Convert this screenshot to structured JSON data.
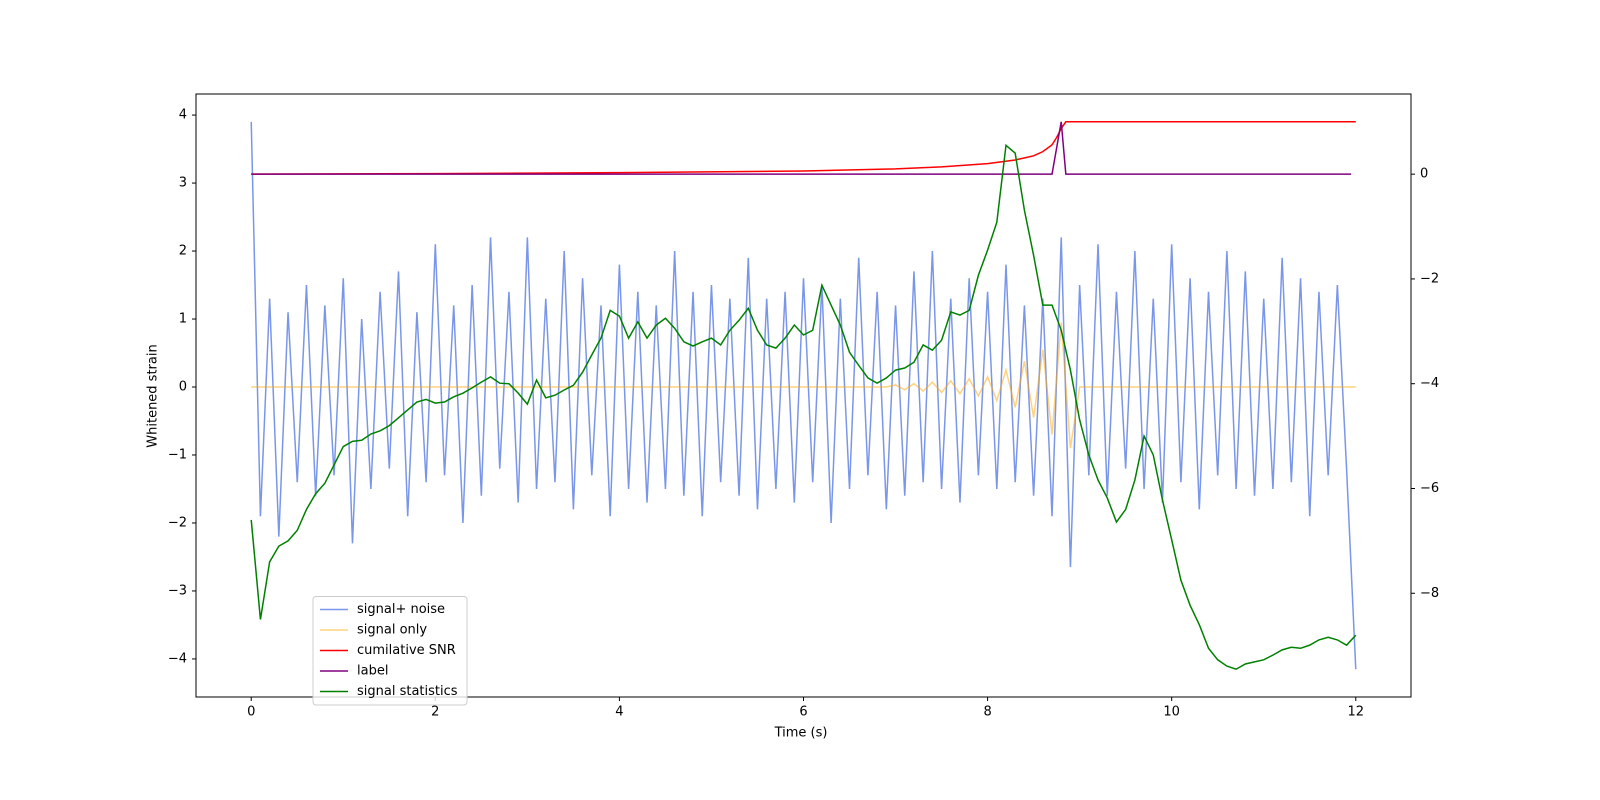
{
  "chart_data": {
    "type": "line",
    "xlabel": "Time (s)",
    "ylabel": "Whitened strain",
    "xlim": [
      -0.6,
      12.6
    ],
    "ylim": [
      -4.56,
      4.31
    ],
    "y2lim": [
      -9.98,
      1.53
    ],
    "xticks": [
      0,
      2,
      4,
      6,
      8,
      10,
      12
    ],
    "yticks": [
      {
        "value": -4,
        "label": "−4"
      },
      {
        "value": -3,
        "label": "−3"
      },
      {
        "value": -2,
        "label": "−2"
      },
      {
        "value": -1,
        "label": "−1"
      },
      0,
      1,
      2,
      3,
      4
    ],
    "y2ticks": [
      {
        "value": -8,
        "label": "−8"
      },
      {
        "value": -6,
        "label": "−6"
      },
      {
        "value": -4,
        "label": "−4"
      },
      {
        "value": -2,
        "label": "−2"
      },
      0
    ],
    "legend": "lower left",
    "x": [
      0,
      0.1,
      0.2,
      0.3,
      0.4,
      0.5,
      0.6,
      0.7,
      0.8,
      0.9,
      1,
      1.1,
      1.2,
      1.3,
      1.4,
      1.5,
      1.6,
      1.7,
      1.8,
      1.9,
      2,
      2.1,
      2.2,
      2.3,
      2.4,
      2.5,
      2.6,
      2.7,
      2.8,
      2.9,
      3,
      3.1,
      3.2,
      3.3,
      3.4,
      3.5,
      3.6,
      3.7,
      3.8,
      3.9,
      4,
      4.1,
      4.2,
      4.3,
      4.4,
      4.5,
      4.6,
      4.7,
      4.8,
      4.9,
      5,
      5.1,
      5.2,
      5.3,
      5.4,
      5.5,
      5.6,
      5.7,
      5.8,
      5.9,
      6,
      6.1,
      6.2,
      6.3,
      6.4,
      6.5,
      6.6,
      6.7,
      6.8,
      6.9,
      7,
      7.1,
      7.2,
      7.3,
      7.4,
      7.5,
      7.6,
      7.7,
      7.8,
      7.9,
      8,
      8.1,
      8.2,
      8.3,
      8.4,
      8.5,
      8.6,
      8.7,
      8.8,
      8.9,
      9,
      9.1,
      9.2,
      9.3,
      9.4,
      9.5,
      9.6,
      9.7,
      9.8,
      9.9,
      10,
      10.1,
      10.2,
      10.3,
      10.4,
      10.5,
      10.6,
      10.7,
      10.8,
      10.9,
      11,
      11.1,
      11.2,
      11.3,
      11.4,
      11.5,
      11.6,
      11.7,
      11.8,
      11.9,
      12
    ],
    "series": [
      {
        "name": "signal+ noise",
        "color": "#4169e1",
        "alpha": 0.7,
        "values": [
          3.9,
          -1.9,
          1.3,
          -2.2,
          1.1,
          -1.4,
          1.5,
          -1.6,
          1.2,
          -1.3,
          1.6,
          -2.3,
          1.0,
          -1.5,
          1.4,
          -1.2,
          1.7,
          -1.9,
          1.1,
          -1.4,
          2.1,
          -1.3,
          1.2,
          -2.0,
          1.5,
          -1.6,
          2.2,
          -1.2,
          1.4,
          -1.7,
          2.2,
          -1.5,
          1.3,
          -1.4,
          2.0,
          -1.8,
          1.6,
          -1.3,
          1.2,
          -1.9,
          1.8,
          -1.5,
          1.4,
          -1.7,
          1.2,
          -1.5,
          2.0,
          -1.6,
          1.4,
          -1.9,
          1.5,
          -1.4,
          1.3,
          -1.6,
          1.9,
          -1.8,
          1.3,
          -1.5,
          1.4,
          -1.7,
          1.6,
          -1.4,
          1.5,
          -2.0,
          1.3,
          -1.5,
          1.9,
          -1.3,
          1.4,
          -1.8,
          1.2,
          -1.6,
          1.7,
          -1.4,
          2.0,
          -1.5,
          1.3,
          -1.7,
          1.6,
          -1.3,
          1.4,
          -1.5,
          1.8,
          -1.4,
          1.2,
          -1.6,
          1.3,
          -1.9,
          2.2,
          -2.65,
          1.5,
          -1.3,
          2.1,
          -1.6,
          1.4,
          -1.2,
          2.0,
          -1.5,
          1.3,
          -1.7,
          2.1,
          -1.4,
          1.6,
          -1.8,
          1.4,
          -1.3,
          2.0,
          -1.5,
          1.7,
          -1.6,
          1.3,
          -1.5,
          1.9,
          -1.4,
          1.6,
          -1.9,
          1.4,
          -1.3,
          1.5,
          -1.2,
          -4.15
        ]
      },
      {
        "name": "signal only",
        "color": "#ffa500",
        "alpha": 0.5,
        "values": [
          0,
          0,
          0,
          0,
          0,
          0,
          0,
          0,
          0,
          0,
          0,
          0,
          0,
          0,
          0,
          0,
          0,
          0,
          0,
          0,
          0,
          0,
          0,
          0,
          0,
          0,
          0,
          0,
          0,
          0,
          0,
          0,
          0,
          0,
          0,
          0,
          0,
          0,
          0,
          0,
          0,
          0,
          0,
          0,
          0,
          0,
          0,
          0,
          0,
          0,
          0,
          0,
          0,
          0,
          0,
          0,
          0,
          0,
          0,
          0,
          0,
          0,
          0,
          0,
          0,
          0,
          0,
          0,
          0,
          0,
          0.03,
          -0.04,
          0.05,
          -0.06,
          0.07,
          -0.08,
          0.09,
          -0.1,
          0.12,
          -0.13,
          0.15,
          -0.2,
          0.25,
          -0.3,
          0.38,
          -0.45,
          0.55,
          -0.7,
          0.95,
          -0.9,
          0,
          0,
          0,
          0,
          0,
          0,
          0,
          0,
          0,
          0,
          0,
          0,
          0,
          0,
          0,
          0,
          0,
          0,
          0,
          0,
          0,
          0,
          0,
          0,
          0,
          0,
          0,
          0,
          0,
          0,
          0
        ]
      },
      {
        "name": "cumilative SNR",
        "color": "#ff0000",
        "axis": "y2",
        "x": [
          0,
          2,
          4,
          6,
          7,
          7.5,
          8,
          8.3,
          8.5,
          8.6,
          8.7,
          8.75,
          8.8,
          8.85,
          12
        ],
        "values": [
          0,
          0.01,
          0.03,
          0.06,
          0.1,
          0.14,
          0.2,
          0.27,
          0.35,
          0.43,
          0.56,
          0.7,
          0.87,
          1.0,
          1.0
        ]
      },
      {
        "name": "label",
        "color": "#800080",
        "axis": "y2",
        "x": [
          0,
          8.7,
          8.8,
          8.85,
          11.95
        ],
        "values": [
          0,
          0,
          1,
          0,
          0
        ]
      },
      {
        "name": "signal statistics",
        "color": "#008000",
        "axis": "y2",
        "values": [
          -6.6,
          -8.5,
          -7.4,
          -7.1,
          -7.0,
          -6.8,
          -6.4,
          -6.1,
          -5.9,
          -5.55,
          -5.2,
          -5.1,
          -5.08,
          -4.96,
          -4.9,
          -4.8,
          -4.65,
          -4.5,
          -4.35,
          -4.3,
          -4.37,
          -4.35,
          -4.25,
          -4.18,
          -4.08,
          -3.97,
          -3.87,
          -3.99,
          -4.0,
          -4.18,
          -4.39,
          -3.93,
          -4.27,
          -4.22,
          -4.12,
          -4.03,
          -3.78,
          -3.45,
          -3.13,
          -2.6,
          -2.71,
          -3.13,
          -2.82,
          -3.13,
          -2.88,
          -2.75,
          -2.94,
          -3.2,
          -3.28,
          -3.2,
          -3.13,
          -3.26,
          -2.98,
          -2.79,
          -2.56,
          -2.98,
          -3.26,
          -3.32,
          -3.13,
          -2.88,
          -3.07,
          -2.98,
          -2.12,
          -2.5,
          -2.88,
          -3.4,
          -3.65,
          -3.89,
          -3.99,
          -3.89,
          -3.74,
          -3.7,
          -3.59,
          -3.26,
          -3.36,
          -3.17,
          -2.63,
          -2.69,
          -2.6,
          -1.93,
          -1.45,
          -0.92,
          0.55,
          0.4,
          -0.69,
          -1.55,
          -2.5,
          -2.5,
          -2.98,
          -3.74,
          -4.69,
          -5.36,
          -5.84,
          -6.18,
          -6.64,
          -6.4,
          -5.84,
          -5.0,
          -5.36,
          -6.22,
          -6.98,
          -7.75,
          -8.23,
          -8.6,
          -9.05,
          -9.27,
          -9.39,
          -9.45,
          -9.35,
          -9.31,
          -9.27,
          -9.18,
          -9.08,
          -9.03,
          -9.05,
          -8.99,
          -8.89,
          -8.84,
          -8.89,
          -8.99,
          -8.8
        ]
      }
    ]
  }
}
